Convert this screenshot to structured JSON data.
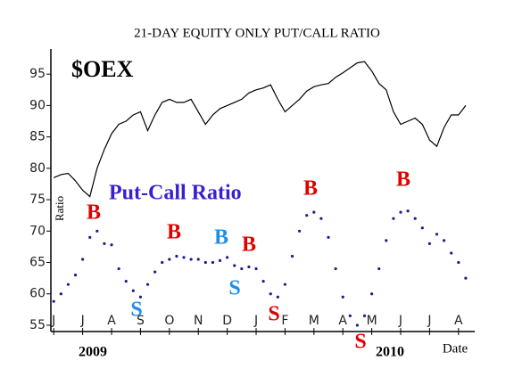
{
  "chart_data": {
    "type": "line",
    "title": "21-DAY EQUITY ONLY PUT/CALL RATIO",
    "y_label": "Ratio",
    "x_label": "Date",
    "year_labels": [
      "2009",
      "2010"
    ],
    "x": [
      0,
      0.25,
      0.5,
      0.75,
      1,
      1.25,
      1.5,
      1.75,
      2,
      2.25,
      2.5,
      2.75,
      3,
      3.25,
      3.5,
      3.75,
      4,
      4.25,
      4.5,
      4.75,
      5,
      5.25,
      5.5,
      5.75,
      6,
      6.25,
      6.5,
      6.75,
      7,
      7.25,
      7.5,
      7.75,
      8,
      8.25,
      8.5,
      8.75,
      9,
      9.25,
      9.5,
      9.75,
      10,
      10.25,
      10.5,
      10.75,
      11,
      11.25,
      11.5,
      11.75,
      12,
      12.25,
      12.5,
      12.75,
      13,
      13.25,
      13.5,
      13.75,
      14,
      14.25
    ],
    "series": [
      {
        "name": "$OEX",
        "style": "line",
        "color": "#000000",
        "values": [
          78.5,
          79,
          79.2,
          78,
          76.5,
          75.5,
          80,
          83,
          85.5,
          87,
          87.5,
          88.5,
          89,
          86,
          88.5,
          90.5,
          91,
          90.5,
          90.5,
          91,
          89,
          87,
          88.5,
          89.5,
          90,
          90.5,
          91,
          92,
          92.5,
          92.8,
          93.3,
          91,
          89,
          90,
          91,
          92.3,
          93,
          93.3,
          93.5,
          94.5,
          95.2,
          96,
          96.8,
          97,
          95.5,
          93.5,
          92.5,
          89,
          87,
          87.5,
          88,
          87,
          84.5,
          83.5,
          86.5,
          88.5,
          88.5,
          90
        ]
      },
      {
        "name": "Put-Call Ratio",
        "style": "dots",
        "color": "#1c1c8e",
        "label_color": "#3a1fd0",
        "values": [
          58.8,
          60,
          61.5,
          63,
          65.5,
          69,
          70,
          68,
          67.8,
          64,
          62,
          60.5,
          59.5,
          61.5,
          63.5,
          65,
          65.5,
          66,
          65.8,
          65.5,
          65.5,
          65,
          65,
          65.3,
          65.8,
          64.5,
          64,
          64.3,
          64,
          62,
          60,
          59.5,
          61.5,
          66,
          70,
          72.5,
          73,
          72,
          69,
          64,
          59.5,
          56.5,
          55,
          56.5,
          60,
          64,
          68.5,
          72,
          73,
          73.2,
          72,
          70.5,
          68,
          69.5,
          68.5,
          66.5,
          65,
          62.5
        ]
      }
    ],
    "annotations": [
      {
        "text": "B",
        "color": "#e00000"
      },
      {
        "text": "S",
        "color": "#1e8fe8"
      },
      {
        "text": "B",
        "color": "#e00000"
      },
      {
        "text": "B",
        "color": "#1e8fe8"
      },
      {
        "text": "S",
        "color": "#1e8fe8"
      },
      {
        "text": "B",
        "color": "#e00000"
      },
      {
        "text": "S",
        "color": "#e00000"
      },
      {
        "text": "B",
        "color": "#e00000"
      },
      {
        "text": "S",
        "color": "#e00000"
      },
      {
        "text": "B",
        "color": "#e00000"
      }
    ],
    "xlim": [
      -0.1,
      14.5
    ],
    "xticks": [
      {
        "value": 0,
        "label": "J"
      },
      {
        "value": 1,
        "label": "J"
      },
      {
        "value": 2,
        "label": "A"
      },
      {
        "value": 3,
        "label": "S"
      },
      {
        "value": 4,
        "label": "O"
      },
      {
        "value": 5,
        "label": "N"
      },
      {
        "value": 6,
        "label": "D"
      },
      {
        "value": 7,
        "label": "J"
      },
      {
        "value": 8,
        "label": "F"
      },
      {
        "value": 9,
        "label": "M"
      },
      {
        "value": 10,
        "label": "A"
      },
      {
        "value": 11,
        "label": "M"
      },
      {
        "value": 12,
        "label": "J"
      },
      {
        "value": 13,
        "label": "J"
      },
      {
        "value": 14,
        "label": "A"
      }
    ],
    "ylim": [
      54,
      99
    ],
    "yticks": [
      55,
      60,
      65,
      70,
      75,
      80,
      85,
      90,
      95
    ]
  }
}
